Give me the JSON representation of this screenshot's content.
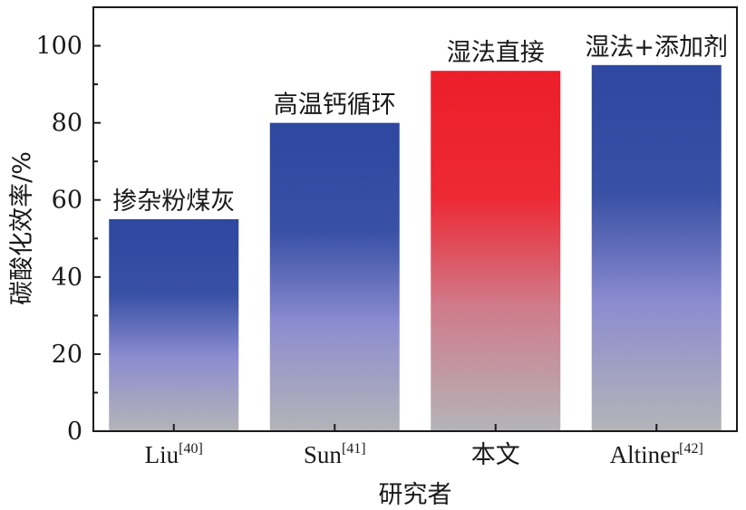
{
  "chart_data": {
    "type": "bar",
    "categories": [
      {
        "main": "Liu",
        "sup": "[40]"
      },
      {
        "main": "Sun",
        "sup": "[41]"
      },
      {
        "main": "本文",
        "sup": ""
      },
      {
        "main": "Altiner",
        "sup": "[42]"
      }
    ],
    "values": [
      55,
      80,
      93.5,
      95
    ],
    "bar_labels": [
      "掺杂粉煤灰",
      "高温钙循环",
      "湿法直接",
      "湿法+添加剂"
    ],
    "bar_colors": [
      {
        "top": "#2e47a0",
        "mid": "#8c8cd0",
        "bottom": "#b4b4b8"
      },
      {
        "top": "#2e47a0",
        "mid": "#8c8cd0",
        "bottom": "#b4b4b8"
      },
      {
        "top": "#ec1e2a",
        "mid": "#d07a8a",
        "bottom": "#b4b4b8"
      },
      {
        "top": "#2e47a0",
        "mid": "#8c8cd0",
        "bottom": "#b4b4b8"
      }
    ],
    "xlabel": "研究者",
    "ylabel": "碳酸化效率/%",
    "ylim": [
      0,
      110
    ],
    "yticks": [
      0,
      20,
      40,
      60,
      80,
      100
    ],
    "grid": false
  }
}
